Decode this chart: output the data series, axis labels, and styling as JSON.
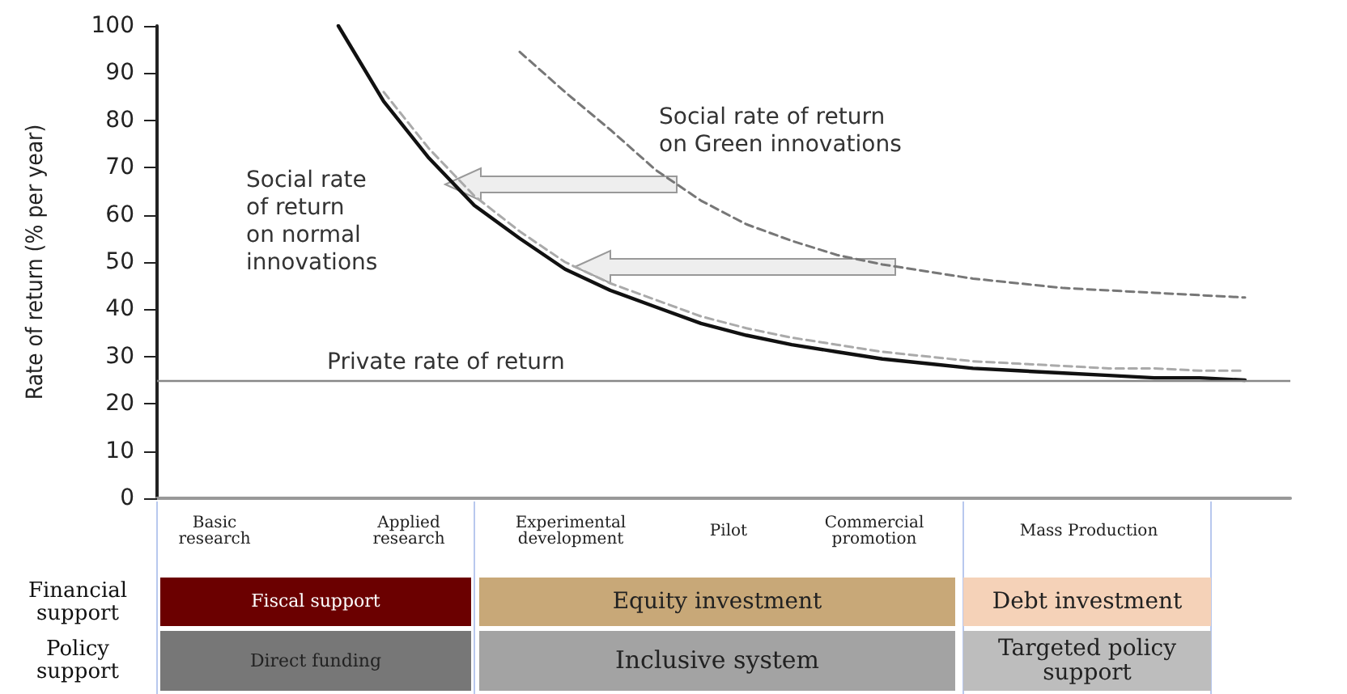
{
  "chart_data": {
    "type": "line",
    "ylabel": "Rate of return (% per year)",
    "ylim": [
      0,
      100
    ],
    "yticks": [
      0,
      10,
      20,
      30,
      40,
      50,
      60,
      70,
      80,
      90,
      100
    ],
    "grid": false,
    "legend": false,
    "marker": "none",
    "categories": [
      null,
      null,
      null,
      null,
      null,
      null,
      null,
      null,
      null,
      null,
      null,
      null,
      null,
      null,
      null,
      null,
      null,
      null,
      null,
      null,
      null,
      null,
      null,
      null,
      null,
      null
    ],
    "series": [
      {
        "name": "Social rate of return on normal innovations",
        "color": "#111111",
        "line_style": "solid",
        "values": [
          null,
          null,
          null,
          null,
          100,
          84,
          72,
          62,
          55,
          48.5,
          44,
          40.5,
          37,
          34.5,
          32.5,
          31,
          29.5,
          28.5,
          27.5,
          27,
          26.5,
          26,
          25.5,
          25.5,
          25,
          null
        ]
      },
      {
        "color": "#aaaaaa",
        "line_style": "dashed",
        "values": [
          null,
          null,
          null,
          null,
          null,
          86,
          74,
          64,
          56.5,
          50,
          45.5,
          42,
          38.5,
          36,
          34,
          32.5,
          31,
          30,
          29,
          28.5,
          28,
          27.5,
          27.5,
          27,
          27,
          null
        ]
      },
      {
        "name": "Social rate of return on Green innovations",
        "color": "#777777",
        "line_style": "dashed",
        "values": [
          null,
          null,
          null,
          null,
          null,
          null,
          null,
          null,
          94.5,
          86,
          78,
          69.5,
          63,
          58,
          54.5,
          51.5,
          49.5,
          48,
          46.5,
          45.5,
          44.5,
          44,
          43.5,
          43,
          42.5,
          null
        ]
      }
    ],
    "ref_lines": [
      {
        "axis": "y",
        "value": 25,
        "label": "Private rate of return",
        "color": "#888888"
      }
    ],
    "annotations": [
      "Basic research",
      "Applied research",
      "Experimental development",
      "Pilot",
      "Commercial promotion",
      "Mass Production",
      "Financial support",
      "Policy support",
      "Fiscal support",
      "Equity investment",
      "Debt investment",
      "Direct funding",
      "Inclusive system",
      "Targeted policy support"
    ]
  }
}
